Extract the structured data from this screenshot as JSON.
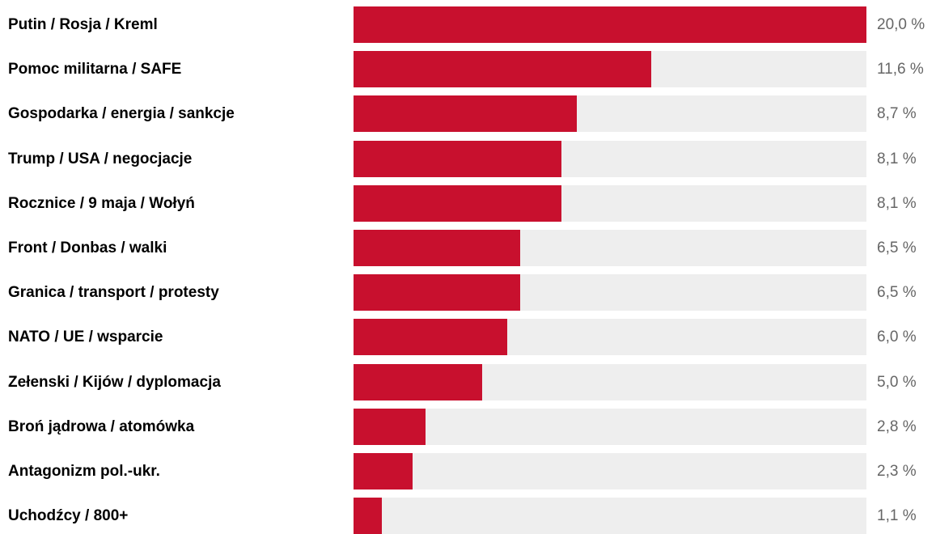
{
  "chart_data": {
    "type": "bar",
    "orientation": "horizontal",
    "categories": [
      "Putin / Rosja / Kreml",
      "Pomoc militarna / SAFE",
      "Gospodarka / energia / sankcje",
      "Trump / USA / negocjacje",
      "Rocznice / 9 maja / Wołyń",
      "Front / Donbas / walki",
      "Granica / transport / protesty",
      "NATO / UE / wsparcie",
      "Zełenski / Kijów / dyplomacja",
      "Broń jądrowa / atomówka",
      "Antagonizm pol.-ukr.",
      "Uchodźcy / 800+"
    ],
    "values": [
      20.0,
      11.6,
      8.7,
      8.1,
      8.1,
      6.5,
      6.5,
      6.0,
      5.0,
      2.8,
      2.3,
      1.1
    ],
    "value_labels": [
      "20,0 %",
      "11,6 %",
      "8,7 %",
      "8,1 %",
      "8,1 %",
      "6,5 %",
      "6,5 %",
      "6,0 %",
      "5,0 %",
      "2,8 %",
      "2,3 %",
      "1,1 %"
    ],
    "xlim": [
      0,
      20
    ],
    "grid": false,
    "legend": "none",
    "colors": {
      "bar": "#c8102e",
      "track": "#eeeeee",
      "label": "#000000",
      "value": "#666666"
    }
  }
}
